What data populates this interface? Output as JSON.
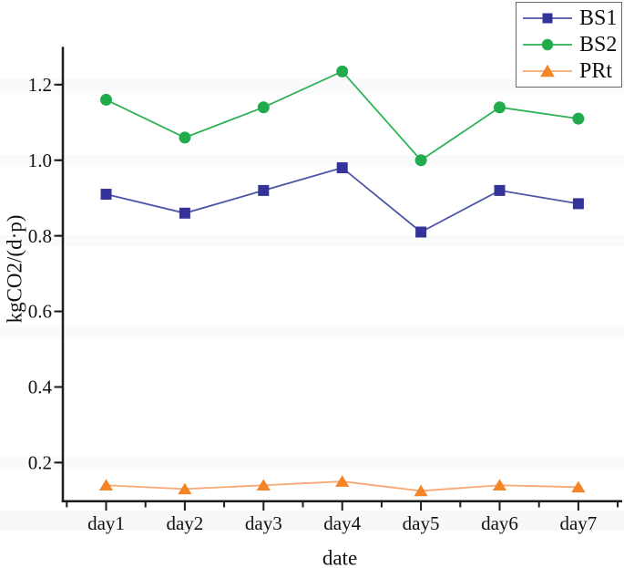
{
  "figure": {
    "background": "#ffffff",
    "axis_color": "#1c1c1c",
    "text_color": "#111111",
    "legend_border_color": "#6b6b6b"
  },
  "chart_data": {
    "type": "line",
    "title": "",
    "xlabel": "date",
    "ylabel": "kgCO2/(d·p)",
    "categories": [
      "day1",
      "day2",
      "day3",
      "day4",
      "day5",
      "day6",
      "day7"
    ],
    "y_tick_labels": [
      "0.2",
      "0.4",
      "0.6",
      "0.8",
      "1.0",
      "1.2"
    ],
    "y_major_ticks": [
      0.2,
      0.4,
      0.6,
      0.8,
      1.0,
      1.2
    ],
    "y_minor_tick_step": 0.1,
    "ylim": [
      0.1,
      1.3
    ],
    "grid": false,
    "legend_position": "top-right",
    "series": [
      {
        "name": "BS1",
        "marker": "square",
        "marker_color": "#33339a",
        "line_color": "#4c55a8",
        "values": [
          0.91,
          0.86,
          0.92,
          0.98,
          0.81,
          0.92,
          0.885
        ]
      },
      {
        "name": "BS2",
        "marker": "circle",
        "marker_color": "#21ab4d",
        "line_color": "#2fb257",
        "values": [
          1.16,
          1.06,
          1.14,
          1.235,
          1.0,
          1.14,
          1.11
        ]
      },
      {
        "name": "PRt",
        "marker": "triangle",
        "marker_color": "#f58426",
        "line_color": "#f8a873",
        "values": [
          0.14,
          0.13,
          0.14,
          0.15,
          0.125,
          0.14,
          0.135
        ]
      }
    ]
  }
}
